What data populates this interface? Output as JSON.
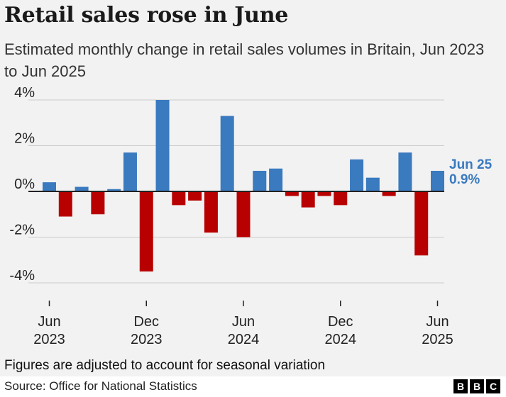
{
  "title": "Retail sales rose in June",
  "subtitle": "Estimated monthly change in retail sales volumes in Britain, Jun 2023 to Jun 2025",
  "footnote": "Figures are adjusted to account for seasonal variation",
  "source": "Source: Office for National Statistics",
  "logo": [
    "B",
    "B",
    "C"
  ],
  "colors": {
    "positive": "#3a7abf",
    "negative": "#b80000",
    "axis": "#222222",
    "grid": "#cccccc"
  },
  "annotation": {
    "label": "Jun 25",
    "value": "0.9%"
  },
  "chart_data": {
    "type": "bar",
    "categories": [
      "Jun 2023",
      "Jul 2023",
      "Aug 2023",
      "Sep 2023",
      "Oct 2023",
      "Nov 2023",
      "Dec 2023",
      "Jan 2024",
      "Feb 2024",
      "Mar 2024",
      "Apr 2024",
      "May 2024",
      "Jun 2024",
      "Jul 2024",
      "Aug 2024",
      "Sep 2024",
      "Oct 2024",
      "Nov 2024",
      "Dec 2024",
      "Jan 2025",
      "Feb 2025",
      "Mar 2025",
      "Apr 2025",
      "May 2025",
      "Jun 2025"
    ],
    "values": [
      0.4,
      -1.1,
      0.2,
      -1.0,
      0.1,
      1.7,
      -3.5,
      4.0,
      -0.6,
      -0.4,
      -1.8,
      3.3,
      -2.0,
      0.9,
      1.0,
      -0.2,
      -0.7,
      -0.2,
      -0.6,
      1.4,
      0.6,
      -0.2,
      1.7,
      -2.8,
      0.9
    ],
    "ylim": [
      -4,
      4
    ],
    "yticks": [
      -4,
      -2,
      0,
      2,
      4
    ],
    "ytick_labels": [
      "-4%",
      "-2%",
      "0%",
      "2%",
      "4%"
    ],
    "xticks": [
      {
        "index": 0,
        "line1": "Jun",
        "line2": "2023"
      },
      {
        "index": 6,
        "line1": "Dec",
        "line2": "2023"
      },
      {
        "index": 12,
        "line1": "Jun",
        "line2": "2024"
      },
      {
        "index": 18,
        "line1": "Dec",
        "line2": "2024"
      },
      {
        "index": 24,
        "line1": "Jun",
        "line2": "2025"
      }
    ],
    "grid": true
  }
}
